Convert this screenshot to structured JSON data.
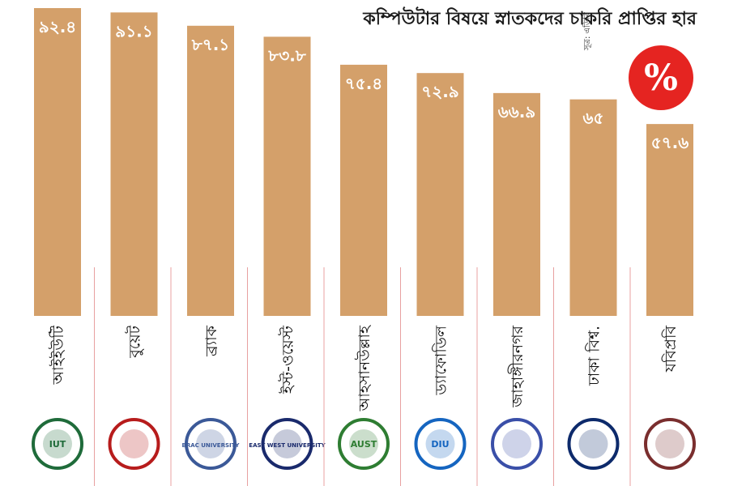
{
  "header": {
    "title": "কম্পিউটার বিষয়ে স্নাতকদের চাকরি প্রাপ্তির হার",
    "badge": "%",
    "source": "সূত্র: এডিবি"
  },
  "colors": {
    "bar": "#D4A06A",
    "label": "#ffffff",
    "divider": "#E8A0A0",
    "badge": "#E52421"
  },
  "logos": [
    {
      "name": "iut-logo",
      "text": "IUT"
    },
    {
      "name": "buet-logo",
      "text": ""
    },
    {
      "name": "brac-logo",
      "text": "BRAC UNIVERSITY"
    },
    {
      "name": "ewu-logo",
      "text": "EAST WEST UNIVERSITY"
    },
    {
      "name": "aust-logo",
      "text": "AUST"
    },
    {
      "name": "diu-logo",
      "text": "DIU"
    },
    {
      "name": "ju-logo",
      "text": ""
    },
    {
      "name": "du-logo",
      "text": ""
    },
    {
      "name": "just-logo",
      "text": ""
    }
  ],
  "chart_data": {
    "type": "bar",
    "title": "কম্পিউটার বিষয়ে স্নাতকদের চাকরি প্রাপ্তির হার",
    "categories": [
      "আইইউটি",
      "বুয়েট",
      "ব্র্যাক",
      "ইস্ট-ওয়েস্ট",
      "আহসানউল্লাহ",
      "ড্যাফোডিল",
      "জাহাঙ্গীরনগর",
      "ঢাকা বিশ্ব.",
      "যবিপ্রবি"
    ],
    "values": [
      92.4,
      91.1,
      87.1,
      83.8,
      75.4,
      72.9,
      66.9,
      65,
      57.6
    ],
    "value_labels": [
      "৯২.৪",
      "৯১.১",
      "৮৭.১",
      "৮৩.৮",
      "৭৫.৪",
      "৭২.৯",
      "৬৬.৯",
      "৬৫",
      "৫৭.৬"
    ],
    "ylim": [
      0,
      100
    ],
    "xlabel": "",
    "ylabel": "",
    "grid": false,
    "legend": "none"
  }
}
